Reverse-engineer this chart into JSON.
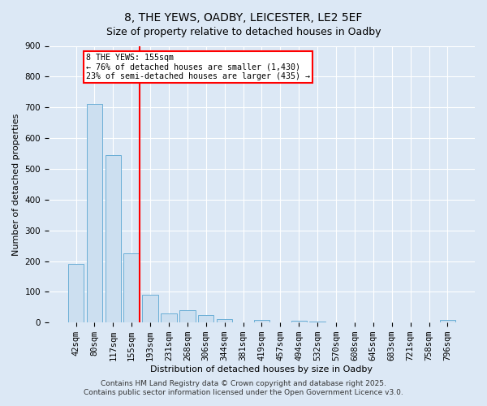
{
  "title": "8, THE YEWS, OADBY, LEICESTER, LE2 5EF",
  "subtitle": "Size of property relative to detached houses in Oadby",
  "xlabel": "Distribution of detached houses by size in Oadby",
  "ylabel": "Number of detached properties",
  "categories": [
    "42sqm",
    "80sqm",
    "117sqm",
    "155sqm",
    "193sqm",
    "231sqm",
    "268sqm",
    "306sqm",
    "344sqm",
    "381sqm",
    "419sqm",
    "457sqm",
    "494sqm",
    "532sqm",
    "570sqm",
    "608sqm",
    "645sqm",
    "683sqm",
    "721sqm",
    "758sqm",
    "796sqm"
  ],
  "values": [
    190,
    710,
    545,
    225,
    90,
    30,
    40,
    25,
    12,
    0,
    8,
    0,
    5,
    2,
    0,
    0,
    0,
    0,
    0,
    0,
    8
  ],
  "bar_color": "#ccdff0",
  "bar_edge_color": "#6aaed6",
  "vline_x_index": 3,
  "vline_color": "red",
  "annotation_title": "8 THE YEWS: 155sqm",
  "annotation_line1": "← 76% of detached houses are smaller (1,430)",
  "annotation_line2": "23% of semi-detached houses are larger (435) →",
  "annotation_box_color": "red",
  "ylim": [
    0,
    900
  ],
  "yticks": [
    0,
    100,
    200,
    300,
    400,
    500,
    600,
    700,
    800,
    900
  ],
  "bg_color": "#dce8f5",
  "plot_bg_color": "#dce8f5",
  "footer1": "Contains HM Land Registry data © Crown copyright and database right 2025.",
  "footer2": "Contains public sector information licensed under the Open Government Licence v3.0.",
  "title_fontsize": 10,
  "subtitle_fontsize": 9,
  "axis_label_fontsize": 8,
  "tick_fontsize": 7.5,
  "footer_fontsize": 6.5
}
